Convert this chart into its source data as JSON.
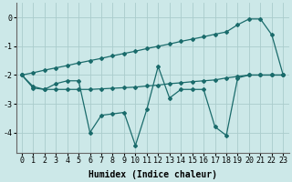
{
  "xlabel": "Humidex (Indice chaleur)",
  "background_color": "#cce8e8",
  "grid_color": "#aacccc",
  "line_color": "#1a6b6b",
  "xlim": [
    -0.5,
    23.5
  ],
  "ylim": [
    -4.7,
    0.5
  ],
  "yticks": [
    0,
    -1,
    -2,
    -3,
    -4
  ],
  "xticks": [
    0,
    1,
    2,
    3,
    4,
    5,
    6,
    7,
    8,
    9,
    10,
    11,
    12,
    13,
    14,
    15,
    16,
    17,
    18,
    19,
    20,
    21,
    22,
    23
  ],
  "envelope_x": [
    0,
    1,
    2,
    3,
    4,
    5,
    6,
    7,
    8,
    9,
    10,
    11,
    12,
    13,
    14,
    15,
    16,
    17,
    18,
    19,
    20,
    21,
    22,
    23
  ],
  "envelope_y": [
    -2.0,
    -1.92,
    -1.83,
    -1.75,
    -1.67,
    -1.58,
    -1.5,
    -1.42,
    -1.33,
    -1.25,
    -1.17,
    -1.08,
    -1.0,
    -0.92,
    -0.83,
    -0.75,
    -0.67,
    -0.58,
    -0.5,
    -0.25,
    -0.05,
    -0.05,
    -0.6,
    -2.0
  ],
  "zigzag_x": [
    0,
    1,
    2,
    3,
    4,
    5,
    6,
    7,
    8,
    9,
    10,
    11,
    12,
    13,
    14,
    15,
    16,
    17,
    18,
    19,
    20,
    21,
    22,
    23
  ],
  "zigzag_y": [
    -2.0,
    -2.4,
    -2.5,
    -2.3,
    -2.2,
    -2.2,
    -4.0,
    -3.4,
    -3.35,
    -3.3,
    -4.45,
    -3.2,
    -1.7,
    -2.8,
    -2.5,
    -2.5,
    -2.5,
    -3.8,
    -4.1,
    -2.1,
    -2.0,
    -2.0,
    -2.0,
    -2.0
  ],
  "flat_x": [
    0,
    1,
    2,
    3,
    4,
    5,
    6,
    7,
    8,
    9,
    10,
    11,
    12,
    13,
    14,
    15,
    16,
    17,
    18,
    19,
    20,
    21,
    22,
    23
  ],
  "flat_y": [
    -2.0,
    -2.45,
    -2.5,
    -2.5,
    -2.5,
    -2.5,
    -2.5,
    -2.48,
    -2.46,
    -2.44,
    -2.42,
    -2.38,
    -2.35,
    -2.3,
    -2.27,
    -2.23,
    -2.2,
    -2.17,
    -2.1,
    -2.05,
    -2.0,
    -2.0,
    -2.0,
    -2.0
  ],
  "fontsize_tick": 6,
  "fontsize_label": 7
}
